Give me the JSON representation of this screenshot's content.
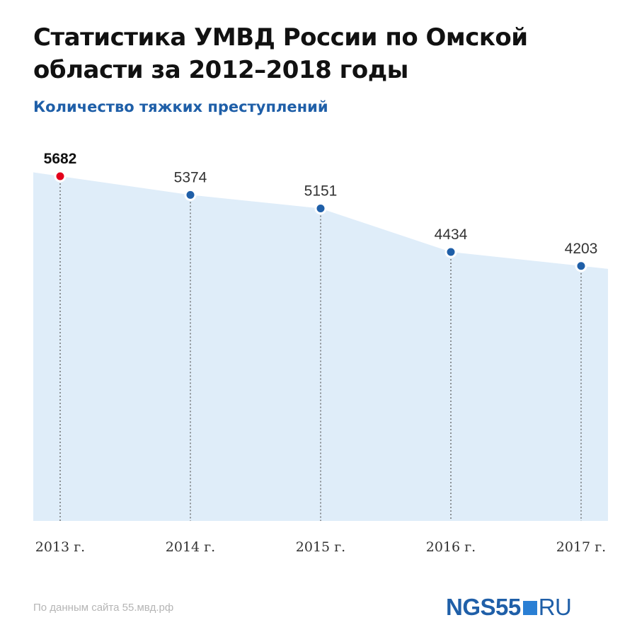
{
  "header": {
    "title": "Статистика УМВД России по Омской области за 2012–2018 годы",
    "subtitle": "Количество тяжких преступлений"
  },
  "footer": {
    "source": "По данным сайта 55.мвд.рф",
    "logo_main": "NGS55",
    "logo_suffix": "RU"
  },
  "chart_data": {
    "type": "area",
    "categories": [
      "2013 г.",
      "2014 г.",
      "2015 г.",
      "2016 г.",
      "2017 г."
    ],
    "values": [
      5682,
      5374,
      5151,
      4434,
      4203
    ],
    "title": "Статистика УМВД России по Омской области за 2012–2018 годы",
    "subtitle": "Количество тяжких преступлений",
    "xlabel": "",
    "ylabel": "",
    "ylim": [
      0,
      5682
    ],
    "grid": false,
    "legend": "none",
    "highlight_index": 0,
    "colors": {
      "fill": "#dfedf9",
      "point": "#1f5fa8",
      "highlight": "#e3001b",
      "dropline": "#555555",
      "label": "#333333"
    }
  }
}
